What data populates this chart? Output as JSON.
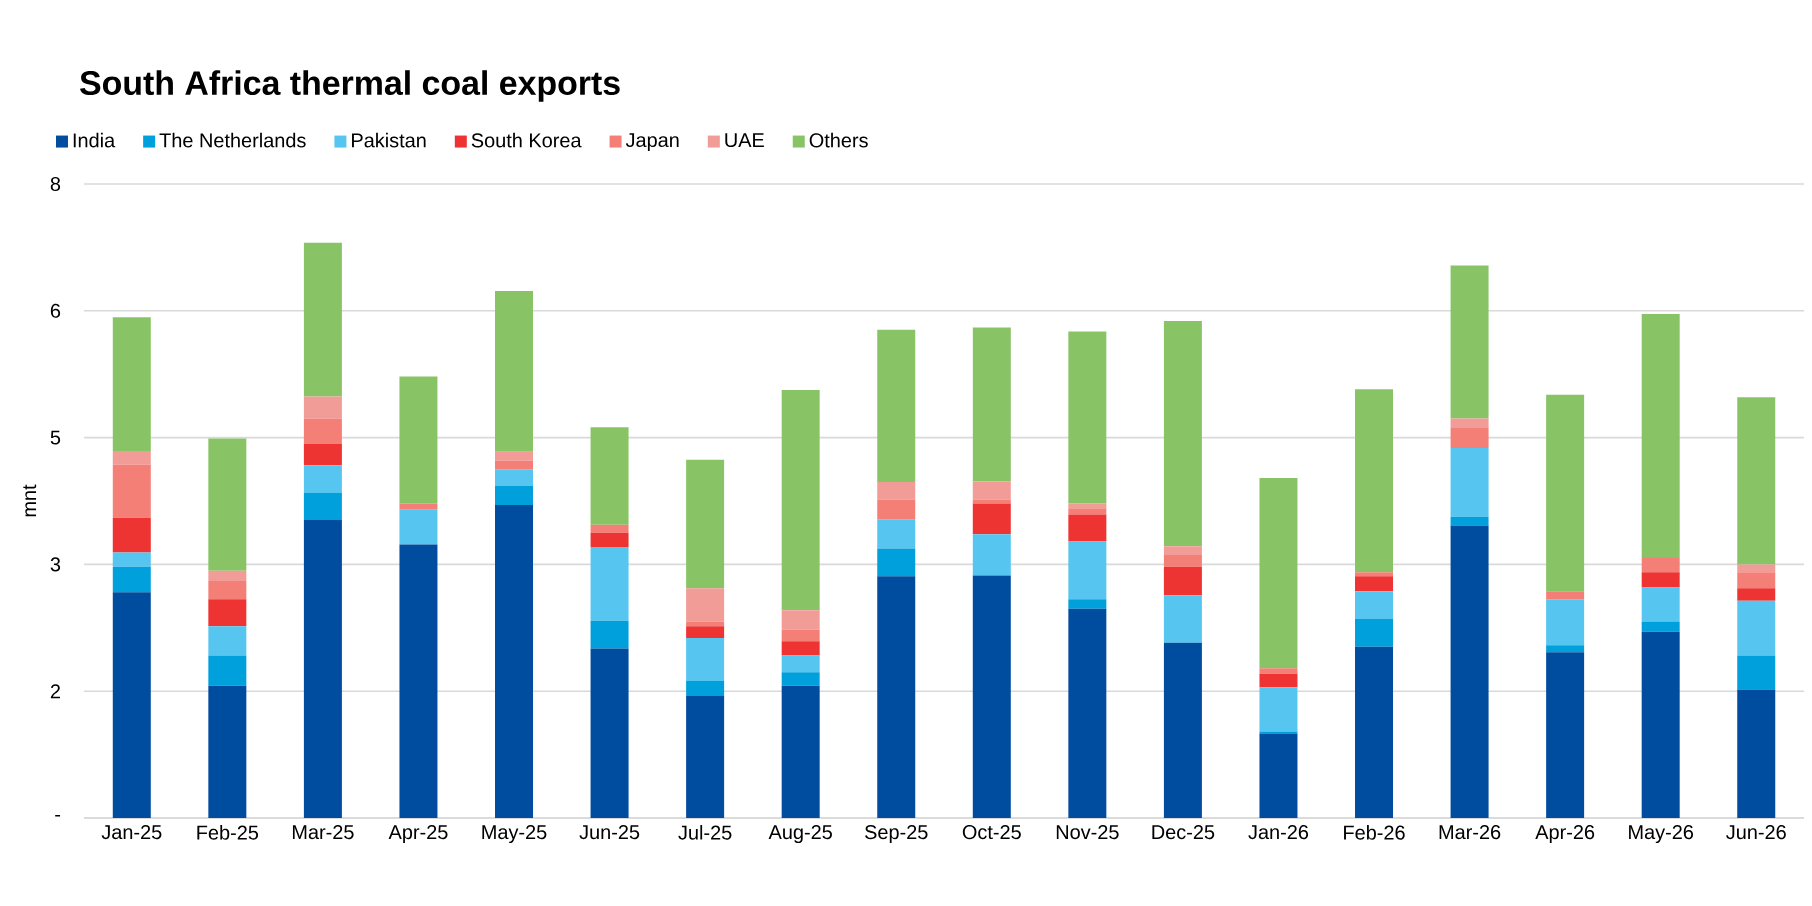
{
  "chart_data": {
    "type": "bar",
    "title": "South Africa thermal coal exports",
    "ylabel": "mnt",
    "stacked": true,
    "grid": "y",
    "legend": "top left",
    "categories": [
      "Jan-25",
      "Feb-25",
      "Mar-25",
      "Apr-25",
      "May-25",
      "Jun-25",
      "Jul-25",
      "Aug-25",
      "Sep-25",
      "Oct-25",
      "Nov-25",
      "Dec-25",
      "Jan-26",
      "Feb-26",
      "Mar-26",
      "Apr-26",
      "May-26",
      "Jun-26"
    ],
    "ylim": [
      0,
      8
    ],
    "yticks": [
      {
        "value": 0,
        "label": "-"
      },
      {
        "value": 1.6,
        "label": "2"
      },
      {
        "value": 3.2,
        "label": "3"
      },
      {
        "value": 4.8,
        "label": "5"
      },
      {
        "value": 6.4,
        "label": "6"
      },
      8
    ],
    "series": [
      {
        "name": "India",
        "color": "#004c9f",
        "values": [
          2.85,
          1.67,
          3.76,
          3.45,
          3.95,
          2.14,
          1.54,
          1.67,
          3.05,
          3.06,
          2.64,
          2.21,
          1.06,
          2.16,
          3.69,
          2.09,
          2.35,
          1.62
        ]
      },
      {
        "name": "The Netherlands",
        "color": "#00a0dc",
        "values": [
          0.32,
          0.38,
          0.34,
          0,
          0.24,
          0.35,
          0.19,
          0.17,
          0.35,
          0,
          0.12,
          0,
          0.03,
          0.35,
          0.11,
          0.09,
          0.13,
          0.43
        ]
      },
      {
        "name": "Pakistan",
        "color": "#56c5f0",
        "values": [
          0.18,
          0.37,
          0.35,
          0.44,
          0.21,
          0.93,
          0.54,
          0.21,
          0.37,
          0.52,
          0.73,
          0.6,
          0.56,
          0.35,
          0.87,
          0.58,
          0.43,
          0.69
        ]
      },
      {
        "name": "South Korea",
        "color": "#ee3333",
        "values": [
          0.44,
          0.34,
          0.27,
          0,
          0,
          0.18,
          0.15,
          0.18,
          0,
          0.39,
          0.34,
          0.36,
          0.17,
          0.19,
          0,
          0,
          0.19,
          0.16
        ]
      },
      {
        "name": "Japan",
        "color": "#f47f77",
        "values": [
          0.67,
          0.23,
          0.32,
          0.08,
          0.11,
          0.1,
          0.06,
          0.15,
          0.25,
          0.05,
          0.07,
          0.15,
          0.07,
          0.05,
          0.25,
          0.1,
          0.18,
          0.2
        ]
      },
      {
        "name": "UAE",
        "color": "#f19c97",
        "values": [
          0.17,
          0.13,
          0.28,
          0,
          0.11,
          0,
          0.42,
          0.24,
          0.22,
          0.23,
          0.07,
          0.11,
          0,
          0,
          0.12,
          0,
          0,
          0.1
        ]
      },
      {
        "name": "Others",
        "color": "#88c465",
        "values": [
          1.69,
          1.67,
          1.94,
          1.6,
          2.03,
          1.23,
          1.62,
          2.78,
          1.92,
          1.94,
          2.17,
          2.84,
          2.4,
          2.31,
          1.93,
          2.48,
          3.08,
          2.11
        ]
      }
    ]
  }
}
